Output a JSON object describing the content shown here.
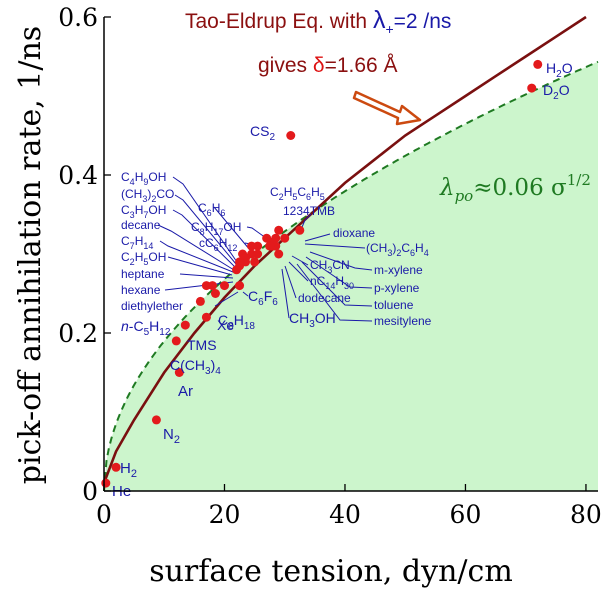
{
  "chart_data": {
    "type": "scatter",
    "xlabel": "surface tension, dyn/cm",
    "ylabel": "pick-off annihilation rate, 1/ns",
    "xlim": [
      0,
      82
    ],
    "ylim": [
      0,
      0.6
    ],
    "xticks": [
      "0",
      "20",
      "40",
      "60",
      "80"
    ],
    "yticks": [
      "0",
      "0.2",
      "0.4",
      "0.6"
    ],
    "colors": {
      "points": "#e31a1c",
      "labels": "#1a1aa8",
      "te_curve": "#7a1010",
      "fit_curve": "#1f7a22",
      "fill": "#ccf5cc"
    },
    "annotation": {
      "line1_prefix": "Tao-Eldrup Eq. with ",
      "lambda": "λ",
      "lambda_sub": "+",
      "line1_suffix": "=2 /ns",
      "line2_prefix": "gives ",
      "delta": "δ",
      "line2_suffix": "=1.66 Å"
    },
    "fit_label": {
      "lambda": "λ",
      "sub": "po",
      "text": "≈0.06 σ",
      "sup": "1/2"
    },
    "curves": {
      "te": {
        "name": "Tao-Eldrup",
        "x": [
          0,
          2,
          5,
          10,
          15,
          20,
          25,
          30,
          35,
          40,
          45,
          50,
          55,
          60,
          65,
          70,
          75,
          80
        ],
        "y": [
          0.01,
          0.05,
          0.09,
          0.15,
          0.2,
          0.245,
          0.285,
          0.32,
          0.355,
          0.39,
          0.42,
          0.45,
          0.475,
          0.5,
          0.525,
          0.55,
          0.575,
          0.6
        ]
      },
      "fit_coef": 0.06
    },
    "points": [
      {
        "name": "H2O",
        "x": 72,
        "y": 0.54
      },
      {
        "name": "D2O",
        "x": 71,
        "y": 0.51
      },
      {
        "name": "CS2",
        "x": 31,
        "y": 0.45
      },
      {
        "name": "dioxane",
        "x": 32.5,
        "y": 0.33
      },
      {
        "name": "C2H5C6H5",
        "x": 29,
        "y": 0.33
      },
      {
        "name": "1234TMB",
        "x": 28.5,
        "y": 0.32
      },
      {
        "name": "C6H6",
        "x": 28,
        "y": 0.31
      },
      {
        "name": "(CH3)2C6H4",
        "x": 30,
        "y": 0.32
      },
      {
        "name": "m-xylene",
        "x": 28.5,
        "y": 0.31
      },
      {
        "name": "p-xylene",
        "x": 28,
        "y": 0.315
      },
      {
        "name": "toluene",
        "x": 27.5,
        "y": 0.31
      },
      {
        "name": "mesitylene",
        "x": 27,
        "y": 0.32
      },
      {
        "name": "C8H17OH",
        "x": 25.5,
        "y": 0.31
      },
      {
        "name": "cC6H12",
        "x": 24.5,
        "y": 0.3
      },
      {
        "name": "CH3CN",
        "x": 29,
        "y": 0.3
      },
      {
        "name": "nC14H30",
        "x": 25.5,
        "y": 0.3
      },
      {
        "name": "dodecane",
        "x": 25,
        "y": 0.29
      },
      {
        "name": "C4H9OH",
        "x": 24.5,
        "y": 0.31
      },
      {
        "name": "(CH3)2CO",
        "x": 23,
        "y": 0.3
      },
      {
        "name": "C3H7OH",
        "x": 23.5,
        "y": 0.29
      },
      {
        "name": "decane",
        "x": 23.5,
        "y": 0.295
      },
      {
        "name": "C7H14",
        "x": 22.5,
        "y": 0.29
      },
      {
        "name": "C2H5OH",
        "x": 22,
        "y": 0.28
      },
      {
        "name": "CH3OH",
        "x": 22.5,
        "y": 0.285
      },
      {
        "name": "heptane",
        "x": 20,
        "y": 0.26
      },
      {
        "name": "hexane",
        "x": 18,
        "y": 0.26
      },
      {
        "name": "C6F6",
        "x": 22.5,
        "y": 0.26
      },
      {
        "name": "diethylether",
        "x": 17,
        "y": 0.26
      },
      {
        "name": "n-C5H12",
        "x": 16,
        "y": 0.24
      },
      {
        "name": "C8H18",
        "x": 18.5,
        "y": 0.25
      },
      {
        "name": "Xe",
        "x": 17,
        "y": 0.22
      },
      {
        "name": "TMS",
        "x": 13.5,
        "y": 0.21
      },
      {
        "name": "C(CH3)4",
        "x": 12,
        "y": 0.19
      },
      {
        "name": "Ar",
        "x": 12.5,
        "y": 0.15
      },
      {
        "name": "N2",
        "x": 8.7,
        "y": 0.09
      },
      {
        "name": "H2",
        "x": 2,
        "y": 0.03
      },
      {
        "name": "He",
        "x": 0.3,
        "y": 0.01
      }
    ],
    "labels": [
      {
        "name": "H2O",
        "parts": [
          [
            "H",
            ""
          ],
          [
            "2",
            "sub"
          ],
          [
            "O",
            ""
          ]
        ]
      },
      {
        "name": "D2O",
        "parts": [
          [
            "D",
            ""
          ],
          [
            "2",
            "sub"
          ],
          [
            "O",
            ""
          ]
        ]
      },
      {
        "name": "CS2",
        "parts": [
          [
            "CS",
            ""
          ],
          [
            "2",
            "sub"
          ]
        ]
      },
      {
        "name": "dioxane",
        "parts": [
          [
            "dioxane",
            ""
          ]
        ]
      },
      {
        "name": "C2H5C6H5",
        "parts": [
          [
            "C",
            ""
          ],
          [
            "2",
            "sub"
          ],
          [
            "H",
            ""
          ],
          [
            "5",
            "sub"
          ],
          [
            "C",
            ""
          ],
          [
            "6",
            "sub"
          ],
          [
            "H",
            ""
          ],
          [
            "5",
            "sub"
          ]
        ]
      },
      {
        "name": "1234TMB",
        "parts": [
          [
            "1234TMB",
            ""
          ]
        ]
      },
      {
        "name": "C6H6",
        "parts": [
          [
            "C",
            ""
          ],
          [
            "6",
            "sub"
          ],
          [
            "H",
            ""
          ],
          [
            "6",
            "sub"
          ]
        ]
      },
      {
        "name": "C8H17OH",
        "parts": [
          [
            "C",
            ""
          ],
          [
            "8",
            "sub"
          ],
          [
            "H",
            ""
          ],
          [
            "17",
            "sub"
          ],
          [
            "OH",
            ""
          ]
        ]
      },
      {
        "name": "cC6H12",
        "parts": [
          [
            "cC",
            ""
          ],
          [
            "6",
            "sub"
          ],
          [
            "H",
            ""
          ],
          [
            "12",
            "sub"
          ]
        ]
      },
      {
        "name": "C4H9OH",
        "parts": [
          [
            "C",
            ""
          ],
          [
            "4",
            "sub"
          ],
          [
            "H",
            ""
          ],
          [
            "9",
            "sub"
          ],
          [
            "OH",
            ""
          ]
        ]
      },
      {
        "name": "(CH3)2CO",
        "parts": [
          [
            "(CH",
            ""
          ],
          [
            "3",
            "sub"
          ],
          [
            ")",
            ""
          ],
          [
            "2",
            "sub"
          ],
          [
            "CO",
            ""
          ]
        ]
      },
      {
        "name": "C3H7OH",
        "parts": [
          [
            "C",
            ""
          ],
          [
            "3",
            "sub"
          ],
          [
            "H",
            ""
          ],
          [
            "7",
            "sub"
          ],
          [
            "OH",
            ""
          ]
        ]
      },
      {
        "name": "decane",
        "parts": [
          [
            "decane",
            ""
          ]
        ]
      },
      {
        "name": "C7H14",
        "parts": [
          [
            "C",
            ""
          ],
          [
            "7",
            "sub"
          ],
          [
            "H",
            ""
          ],
          [
            "14",
            "sub"
          ]
        ]
      },
      {
        "name": "C2H5OH",
        "parts": [
          [
            "C",
            ""
          ],
          [
            "2",
            "sub"
          ],
          [
            "H",
            ""
          ],
          [
            "5",
            "sub"
          ],
          [
            "OH",
            ""
          ]
        ]
      },
      {
        "name": "heptane",
        "parts": [
          [
            "heptane",
            ""
          ]
        ]
      },
      {
        "name": "hexane",
        "parts": [
          [
            "hexane",
            ""
          ]
        ]
      },
      {
        "name": "diethylether",
        "parts": [
          [
            "diethylether",
            ""
          ]
        ]
      },
      {
        "name": "n-C5H12",
        "parts": [
          [
            "n",
            "it"
          ],
          [
            "-C",
            ""
          ],
          [
            "5",
            "sub"
          ],
          [
            "H",
            ""
          ],
          [
            "12",
            "sub"
          ]
        ]
      },
      {
        "name": "C8H18",
        "parts": [
          [
            "C",
            ""
          ],
          [
            "8",
            "sub"
          ],
          [
            "H",
            ""
          ],
          [
            "18",
            "sub"
          ]
        ]
      },
      {
        "name": "C6F6",
        "parts": [
          [
            "C",
            ""
          ],
          [
            "6",
            "sub"
          ],
          [
            "F",
            ""
          ],
          [
            "6",
            "sub"
          ]
        ]
      },
      {
        "name": "CH3CN",
        "parts": [
          [
            "CH",
            ""
          ],
          [
            "3",
            "sub"
          ],
          [
            "CN",
            ""
          ]
        ]
      },
      {
        "name": "nC14H30",
        "parts": [
          [
            "nC",
            ""
          ],
          [
            "14",
            "sub"
          ],
          [
            "H",
            ""
          ],
          [
            "30",
            "sub"
          ]
        ]
      },
      {
        "name": "dodecane",
        "parts": [
          [
            "dodecane",
            ""
          ]
        ]
      },
      {
        "name": "CH3OH",
        "parts": [
          [
            "CH",
            ""
          ],
          [
            "3",
            "sub"
          ],
          [
            "OH",
            ""
          ]
        ]
      },
      {
        "name": "(CH3)2C6H4",
        "parts": [
          [
            "(CH",
            ""
          ],
          [
            "3",
            "sub"
          ],
          [
            ")",
            ""
          ],
          [
            "2",
            "sub"
          ],
          [
            "C",
            ""
          ],
          [
            "6",
            "sub"
          ],
          [
            "H",
            ""
          ],
          [
            "4",
            "sub"
          ]
        ]
      },
      {
        "name": "m-xylene",
        "parts": [
          [
            "m-xylene",
            ""
          ]
        ]
      },
      {
        "name": "p-xylene",
        "parts": [
          [
            "p-xylene",
            ""
          ]
        ]
      },
      {
        "name": "toluene",
        "parts": [
          [
            "toluene",
            ""
          ]
        ]
      },
      {
        "name": "mesitylene",
        "parts": [
          [
            "mesitylene",
            ""
          ]
        ]
      },
      {
        "name": "Xe",
        "parts": [
          [
            "Xe",
            ""
          ]
        ]
      },
      {
        "name": "TMS",
        "parts": [
          [
            "TMS",
            ""
          ]
        ]
      },
      {
        "name": "C(CH3)4",
        "parts": [
          [
            "C(CH",
            ""
          ],
          [
            "3",
            "sub"
          ],
          [
            ")",
            ""
          ],
          [
            "4",
            "sub"
          ]
        ]
      },
      {
        "name": "Ar",
        "parts": [
          [
            "Ar",
            ""
          ]
        ]
      },
      {
        "name": "N2",
        "parts": [
          [
            "N",
            ""
          ],
          [
            "2",
            "sub"
          ]
        ]
      },
      {
        "name": "H2",
        "parts": [
          [
            "H",
            ""
          ],
          [
            "2",
            "sub"
          ]
        ]
      },
      {
        "name": "He",
        "parts": [
          [
            "He",
            ""
          ]
        ]
      }
    ]
  }
}
